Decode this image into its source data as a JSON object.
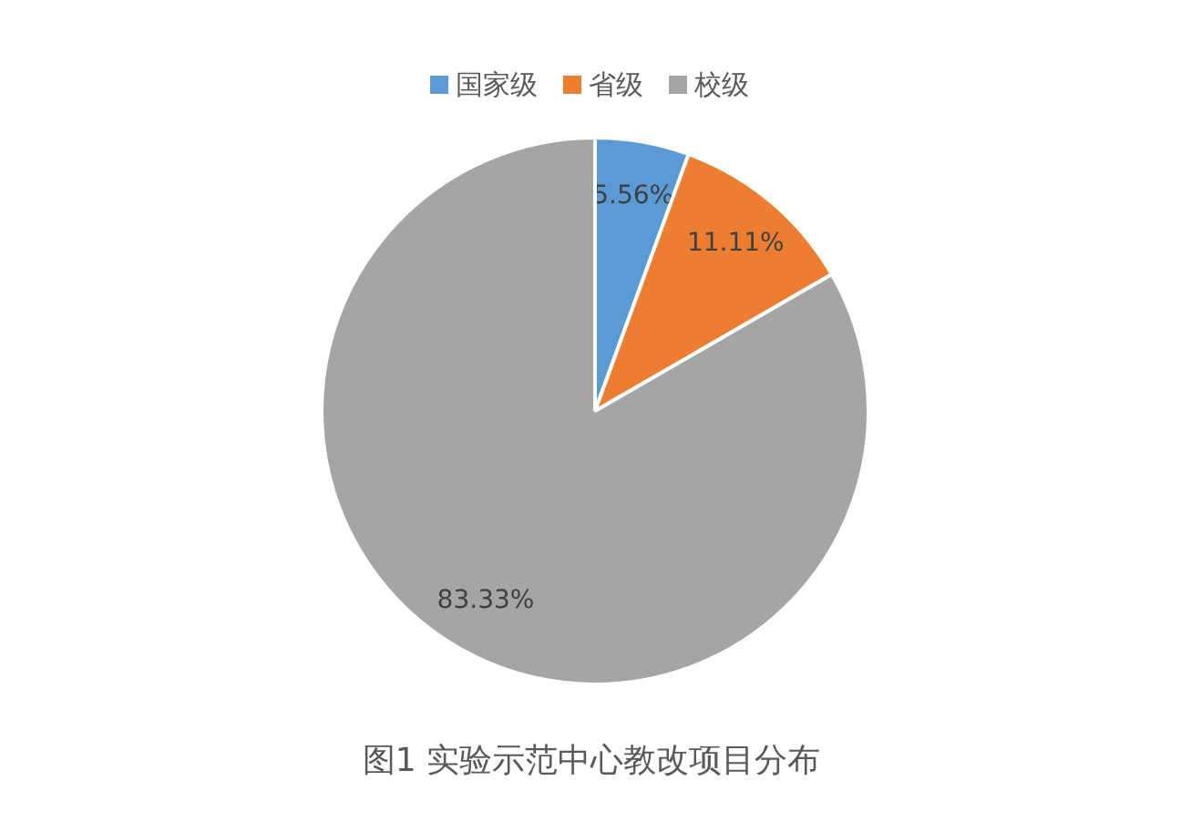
{
  "chart_data": {
    "type": "pie",
    "title": "图1 实验示范中心教改项目分布",
    "categories": [
      "国家级",
      "省级",
      "校级"
    ],
    "values": [
      5.56,
      11.11,
      83.33
    ],
    "value_labels": [
      "5.56%",
      "11.11%",
      "83.33%"
    ],
    "colors": [
      "#5b9bd5",
      "#ed7d31",
      "#a5a5a5"
    ],
    "legend": "top"
  }
}
